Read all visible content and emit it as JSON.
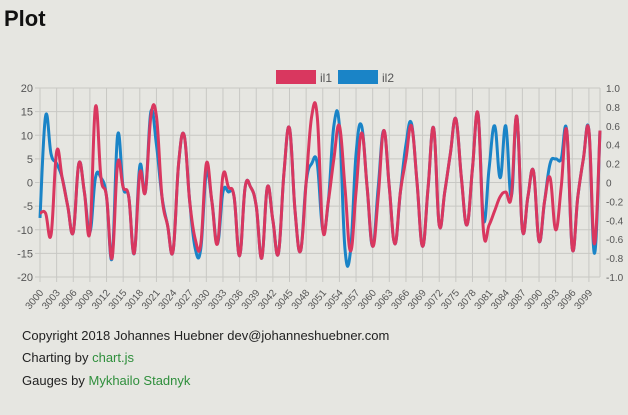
{
  "page": {
    "title": "Plot"
  },
  "footer": {
    "copyright": "Copyright 2018 Johannes Huebner dev@johanneshuebner.com",
    "charting_prefix": "Charting by ",
    "charting_link": "chart.js",
    "gauges_prefix": "Gauges by ",
    "gauges_link": "Mykhailo Stadnyk"
  },
  "chart_data": {
    "type": "line",
    "title": "",
    "xlabel": "",
    "ylabel": "",
    "ylim": [
      -20,
      20
    ],
    "yticks": [
      20,
      15,
      10,
      5,
      0,
      -5,
      -10,
      -15,
      -20
    ],
    "y2lim": [
      -1.0,
      1.0
    ],
    "y2ticks": [
      "1.0",
      "0.8",
      "0.6",
      "0.4",
      "0.2",
      "0",
      "-0.2",
      "-0.4",
      "-0.6",
      "-0.8",
      "-1.0"
    ],
    "x_start": 3000,
    "x_end": 3101,
    "x_tick_step": 3,
    "grid": true,
    "legend": "top",
    "series": [
      {
        "name": "il1",
        "color": "#d9375f",
        "values": [
          -6.5,
          -6.5,
          -11,
          6.5,
          1,
          -5,
          -10.5,
          4,
          -2,
          -10.5,
          16,
          1,
          -3,
          -16,
          4,
          -1,
          -3,
          -15,
          2,
          -2,
          14,
          14,
          -3,
          -9,
          -14.5,
          4,
          10,
          -4,
          -12,
          -13,
          4,
          -4,
          -13,
          1.5,
          -1,
          -3,
          -15.5,
          -1,
          -1,
          -5,
          -16,
          -1,
          -8,
          -15,
          2,
          11.5,
          -6,
          -14.5,
          0,
          14,
          14,
          -10,
          -4,
          5,
          12,
          -1,
          -14.5,
          -2,
          10.5,
          -1,
          -13.5,
          -3,
          11,
          -1,
          -13,
          -2,
          5,
          12,
          0,
          -13.5,
          -1,
          11.5,
          -9,
          -2,
          6,
          13.5,
          1,
          -9,
          3,
          14.5,
          -10.5,
          -9,
          -6,
          -3,
          -2,
          -3,
          14,
          -10,
          -3,
          2.4,
          -12.4,
          -4,
          1,
          -10,
          -1,
          11,
          -14,
          -3,
          5,
          11,
          -13,
          11
        ]
      },
      {
        "name": "il2",
        "color": "#1a84c7",
        "values": [
          -7.5,
          14,
          6,
          4,
          1,
          -5,
          -10.5,
          4,
          -2,
          -10.5,
          1,
          1,
          -3,
          -16,
          10,
          -1,
          -3,
          -15,
          3.5,
          -2,
          15,
          8,
          -3,
          -9,
          -14.5,
          4,
          10,
          -4,
          -14,
          -14,
          2,
          -4,
          -13,
          -2,
          -2,
          -3,
          -15.5,
          -1,
          -1,
          -5,
          -16,
          -1,
          -8,
          -15,
          2,
          11.5,
          -6,
          -14.5,
          0,
          4,
          4,
          -10,
          -4,
          12,
          12,
          -14,
          -14.5,
          6,
          12,
          -1,
          -13.5,
          -1,
          11,
          -1,
          -13,
          -2,
          8,
          12.5,
          0,
          -13.5,
          -1,
          11.5,
          -9,
          -2,
          6,
          13.5,
          1,
          -9,
          3,
          14.5,
          -8,
          3,
          12,
          1,
          12,
          -3,
          14,
          -10,
          -3,
          2.4,
          -12.4,
          -4,
          4,
          5,
          5,
          11,
          -14,
          -3,
          5,
          11,
          -15,
          11
        ]
      }
    ]
  }
}
